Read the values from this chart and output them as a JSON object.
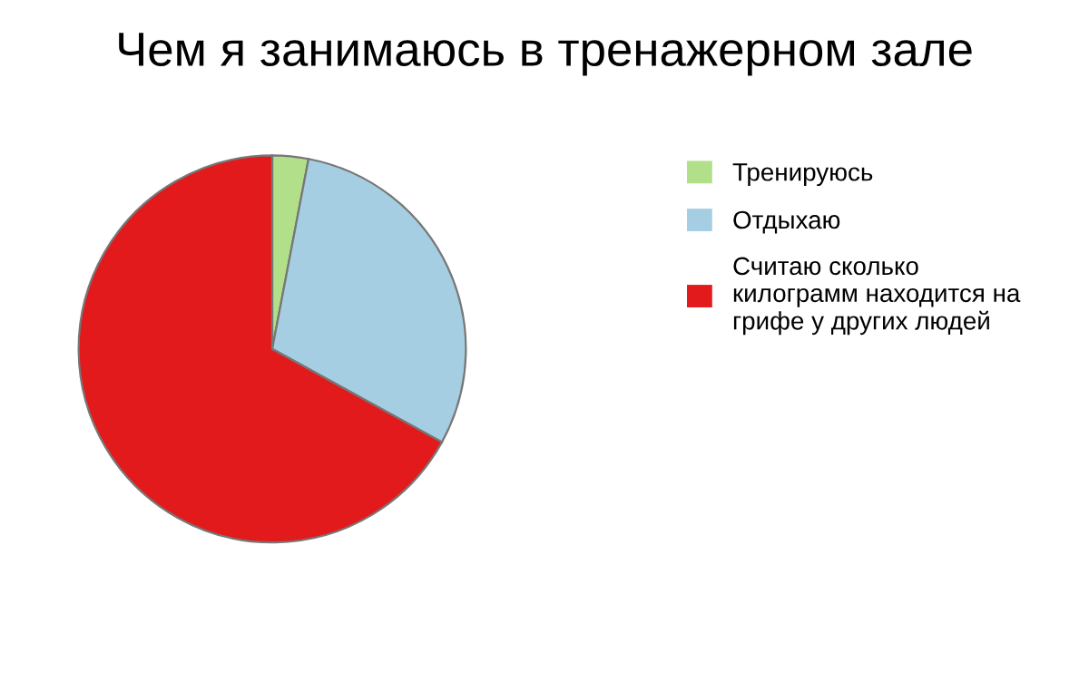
{
  "chart_data": {
    "type": "pie",
    "title": "Чем я занимаюсь в тренажерном зале",
    "categories": [
      "Тренируюсь",
      "Отдыхаю",
      "Считаю сколько\nкилограмм находится на\nгрифе у других людей"
    ],
    "values": [
      3,
      30,
      67
    ],
    "colors": [
      "#b2df8a",
      "#a6cee3",
      "#e31a1c"
    ],
    "legend": "right"
  }
}
